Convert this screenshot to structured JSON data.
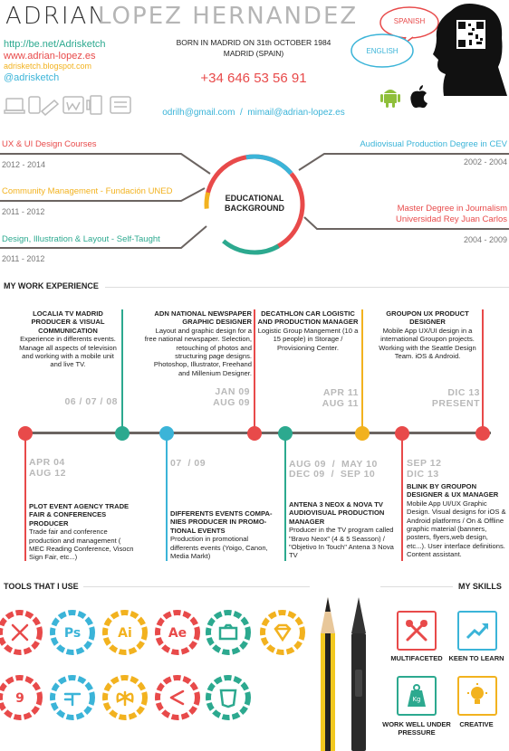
{
  "header": {
    "first_name": "ADRIAN",
    "last_name": "LOPEZ HERNANDEZ",
    "links": {
      "behance": "http://be.net/Adrisketch",
      "website": "www.adrian-lopez.es",
      "blog": "adrisketch.blogspot.com",
      "twitter": "@adrisketch"
    },
    "born": "BORN IN MADRID ON 31th OCTOBER 1984",
    "place": "MADRID (SPAIN)",
    "phone": "+34 646 53 56 91",
    "emails": "odrilh@gmail.com  /  mimail@adrian-lopez.es",
    "languages": [
      "SPANISH",
      "ENGLISH"
    ]
  },
  "education": {
    "center_label": "EDUCATIONAL BACKGROUND",
    "left": [
      {
        "title": "UX & UI Design Courses",
        "years": "2012 - 2014",
        "color": "#e84a4a"
      },
      {
        "title": "Community Management - Fundación UNED",
        "years": "2011 - 2012",
        "color": "#f2b21f"
      },
      {
        "title": "Design, Illustration & Layout - Self-Taught",
        "years": "2011 - 2012",
        "color": "#2ca98f"
      }
    ],
    "right": [
      {
        "title": "Audiovisual Production Degree in CEV",
        "years": "2002 - 2004",
        "color": "#3bb4d8"
      },
      {
        "title_line1": "Master Degree in Journalism",
        "title_line2": "Universidad Rey Juan Carlos",
        "years": "2004 - 2009",
        "color": "#e84a4a"
      }
    ]
  },
  "experience": {
    "title": "MY WORK EXPERIENCE",
    "top": [
      {
        "head": "LOCALIA TV MADRID PRODUCER & VISUAL COMMUNICATION",
        "body": "Experience in differents events. Manage all aspects of television and working with a mobile unit and live TV.",
        "date1": "06 / 07 / 08",
        "date2": ""
      },
      {
        "head": "ADN NATIONAL NEWSPAPER GRAPHIC DESIGNER",
        "body": "Layout and graphic design for a free national newspaper. Selection, retouching of photos and structuring page designs. Photoshop, Illustrator, Freehand and Millenium Designer.",
        "date1": "JAN 09",
        "date2": "AUG 09"
      },
      {
        "head": "DECATHLON CAR LOGISTIC AND PRODUCTION MANAGER",
        "body": "Logistic Group Mangement (10 a 15 people) in Storage / Provisioning Center.",
        "date1": "APR 11",
        "date2": "AUG 11"
      },
      {
        "head": "GROUPON UX PRODUCT DESIGNER",
        "body": "Mobile App UX/UI design in a international Groupon projects. Working with the Seattle Design Team. iOS & Android.",
        "date1": "DIC 13",
        "date2": "PRESENT"
      }
    ],
    "bottom": [
      {
        "date1": "APR 04",
        "date2": "AUG 12",
        "head": "PLOT EVENT AGENCY TRADE FAIR & CONFERENCES PRODUCER",
        "body": "Trade fair and conference production and management ( MEC Reading Conference, Visocn Sign Fair, etc...)"
      },
      {
        "date1": "07  / 09",
        "date2": "",
        "head": "DIFFERENTS EVENTS COMPA-NIES PRODUCER IN PROMO-TIONAL EVENTS",
        "body": "Production in promotional differents events (Yoigo, Canon, Media Markt)"
      },
      {
        "date1": "AUG 09  /  MAY 10",
        "date2": "DEC 09  /  SEP 10",
        "head": "ANTENA 3 NEOX & NOVA TV AUDIOVISUAL PRODUCTION MANAGER",
        "body": "Producer in the TV program called \"Bravo Neox\" (4 & 5 Seasson) / \"Objetivo In Touch\" Antena 3 Nova TV"
      },
      {
        "date1": "SEP 12",
        "date2": "DIC 13",
        "head": "BLINK BY GROUPON DESIGNER & UX MANAGER",
        "body": "Mobile App UI/UX Graphic Design. Visual designs for iOS & Android platforms / On & Offline graphic material (banners, posters, flyers,web design, etc...). User interface definitions. Content assistant."
      }
    ]
  },
  "tools": {
    "title": "TOOLS THAT I USE",
    "items": [
      {
        "icon": "pen-tool-icon",
        "label": "",
        "color": "#e84a4a"
      },
      {
        "icon": "photoshop-icon",
        "label": "Ps",
        "color": "#3bb4d8"
      },
      {
        "icon": "illustrator-icon",
        "label": "Ai",
        "color": "#f2b21f"
      },
      {
        "icon": "after-effects-icon",
        "label": "Ae",
        "color": "#e84a4a"
      },
      {
        "icon": "camera-icon",
        "label": "",
        "color": "#2ca98f"
      },
      {
        "icon": "sketch-icon",
        "label": "",
        "color": "#f2b21f"
      },
      {
        "icon": "nine-icon",
        "label": "9",
        "color": "#e84a4a"
      },
      {
        "icon": "freehand-icon",
        "label": "",
        "color": "#3bb4d8"
      },
      {
        "icon": "butterfly-icon",
        "label": "",
        "color": "#f2b21f"
      },
      {
        "icon": "share-icon",
        "label": "",
        "color": "#e84a4a"
      },
      {
        "icon": "html5-icon",
        "label": "",
        "color": "#2ca98f"
      }
    ]
  },
  "skills": {
    "title": "MY SKILLS",
    "items": [
      {
        "icon": "tools-icon",
        "label": "MULTIFACETED",
        "color": "#e84a4a"
      },
      {
        "icon": "chart-up-icon",
        "label": "KEEN TO LEARN",
        "color": "#3bb4d8"
      },
      {
        "icon": "weight-icon",
        "label": "WORK WELL UNDER PRESSURE",
        "color": "#2ca98f"
      },
      {
        "icon": "bulb-icon",
        "label": "CREATIVE",
        "color": "#f2b21f"
      }
    ]
  }
}
